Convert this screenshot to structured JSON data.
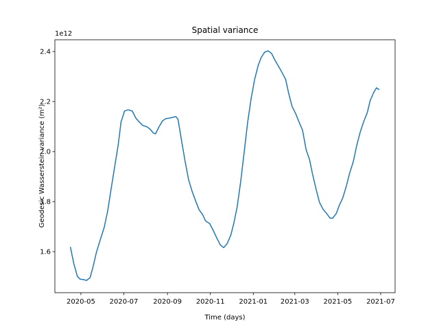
{
  "chart_data": {
    "type": "line",
    "title": "Spatial variance",
    "x_label": "Time (days)",
    "y_label": "Geodesic Wasserstein variance (m²)",
    "y_offset": "1e12",
    "x": [
      18368,
      18373,
      18378,
      18382,
      18387,
      18391,
      18396,
      18400,
      18405,
      18411,
      18416,
      18421,
      18426,
      18431,
      18436,
      18440,
      18445,
      18450,
      18456,
      18461,
      18466,
      18471,
      18477,
      18481,
      18486,
      18489,
      18494,
      18499,
      18504,
      18509,
      18514,
      18518,
      18521,
      18526,
      18531,
      18536,
      18541,
      18546,
      18551,
      18556,
      18560,
      18566,
      18571,
      18576,
      18581,
      18586,
      18591,
      18596,
      18600,
      18605,
      18610,
      18615,
      18620,
      18625,
      18630,
      18635,
      18639,
      18644,
      18649,
      18654,
      18659,
      18664,
      18669,
      18674,
      18678,
      18683,
      18688,
      18693,
      18698,
      18703,
      18708,
      18712,
      18717,
      18722,
      18727,
      18732,
      18737,
      18741,
      18746,
      18750,
      18755,
      18760,
      18765,
      18770,
      18775,
      18780,
      18785,
      18790,
      18794,
      18799,
      18803,
      18807
    ],
    "series": [
      {
        "color": "#1f77b4",
        "values": [
          1.619,
          1.551,
          1.501,
          1.49,
          1.488,
          1.485,
          1.496,
          1.537,
          1.597,
          1.652,
          1.696,
          1.762,
          1.852,
          1.94,
          2.027,
          2.118,
          2.162,
          2.167,
          2.162,
          2.134,
          2.118,
          2.104,
          2.099,
          2.09,
          2.074,
          2.071,
          2.099,
          2.123,
          2.132,
          2.134,
          2.137,
          2.14,
          2.129,
          2.044,
          1.962,
          1.888,
          1.841,
          1.803,
          1.767,
          1.748,
          1.723,
          1.712,
          1.685,
          1.655,
          1.627,
          1.616,
          1.633,
          1.666,
          1.71,
          1.778,
          1.879,
          1.997,
          2.118,
          2.214,
          2.29,
          2.345,
          2.375,
          2.397,
          2.403,
          2.392,
          2.364,
          2.34,
          2.315,
          2.288,
          2.236,
          2.181,
          2.153,
          2.118,
          2.085,
          2.008,
          1.967,
          1.912,
          1.852,
          1.797,
          1.77,
          1.753,
          1.734,
          1.734,
          1.753,
          1.784,
          1.814,
          1.86,
          1.915,
          1.959,
          2.025,
          2.079,
          2.121,
          2.156,
          2.203,
          2.236,
          2.255,
          2.247
        ]
      }
    ],
    "xlim": [
      18346,
      18829.5
    ],
    "xticks": [
      {
        "value": 18383,
        "label": "2020-05"
      },
      {
        "value": 18444,
        "label": "2020-07"
      },
      {
        "value": 18506,
        "label": "2020-09"
      },
      {
        "value": 18567,
        "label": "2020-11"
      },
      {
        "value": 18628,
        "label": "2021-01"
      },
      {
        "value": 18687,
        "label": "2021-03"
      },
      {
        "value": 18748,
        "label": "2021-05"
      },
      {
        "value": 18809,
        "label": "2021-07"
      }
    ],
    "ylim": [
      1.436,
      2.447
    ],
    "yticks": [
      1.6,
      1.8,
      {
        "value": 2,
        "label": "2.0"
      },
      2.2,
      2.4
    ],
    "grid": false
  }
}
